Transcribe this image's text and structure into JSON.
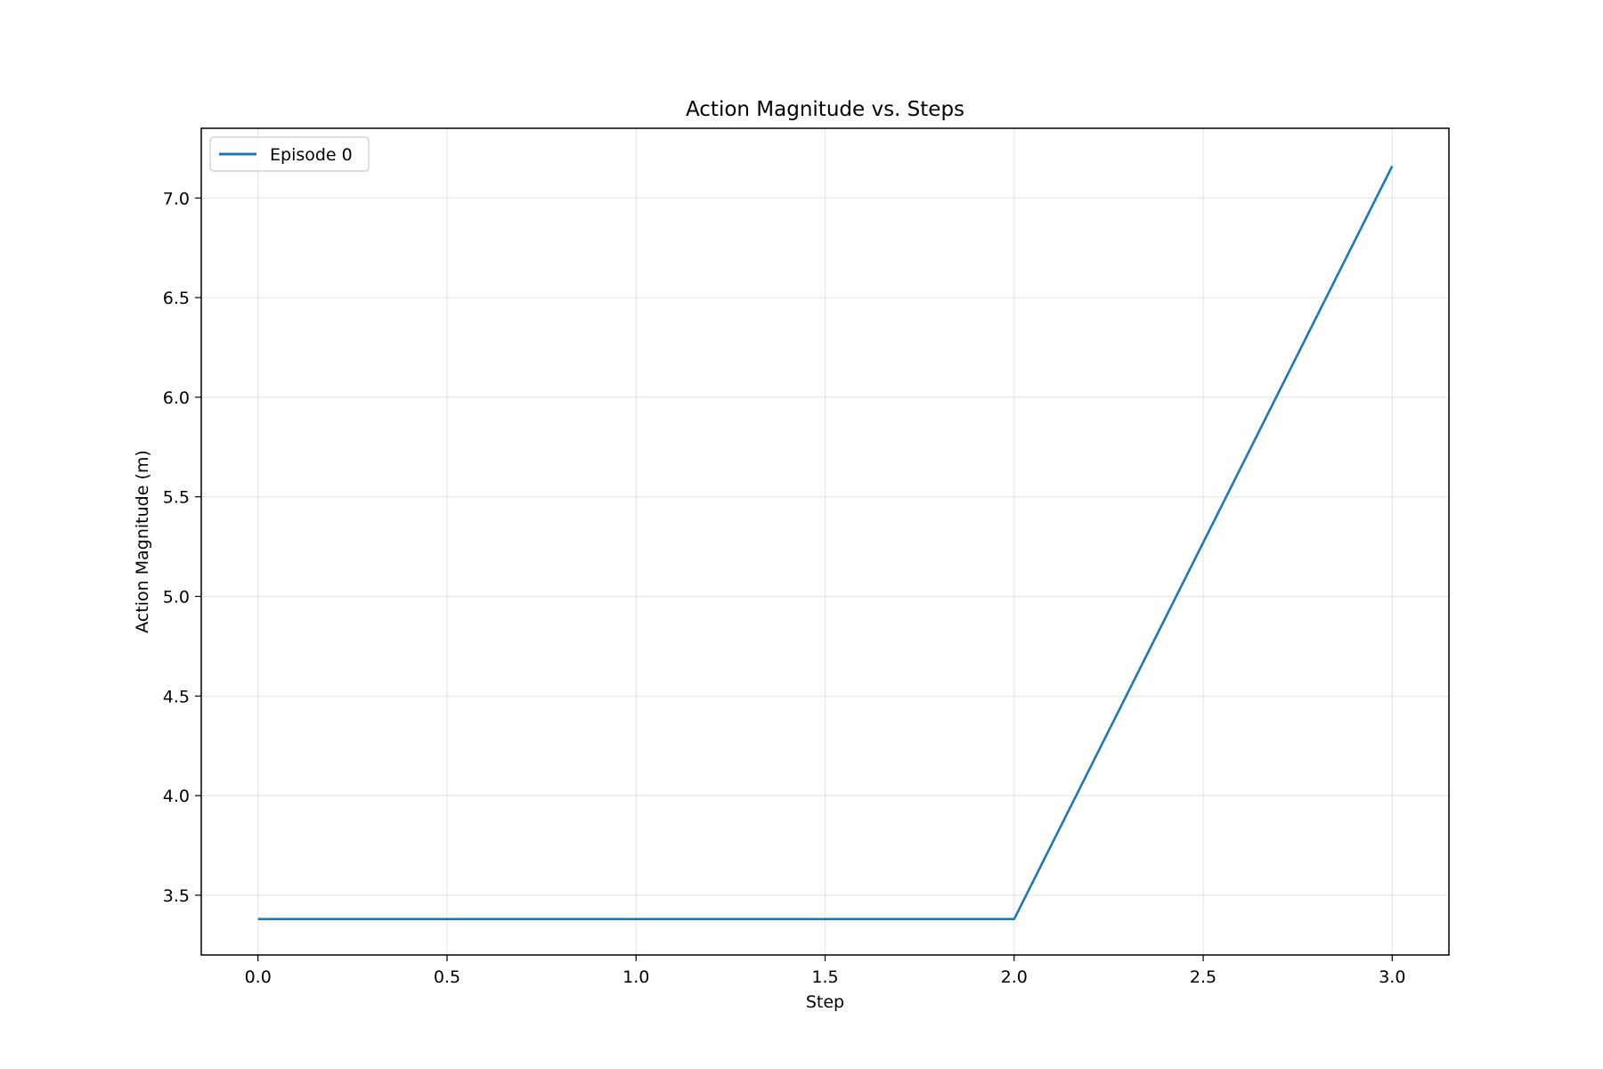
{
  "chart_data": {
    "type": "line",
    "title": "Action Magnitude vs. Steps",
    "xlabel": "Step",
    "ylabel": "Action Magnitude (m)",
    "xlim": [
      -0.15,
      3.15
    ],
    "ylim": [
      3.2,
      7.35
    ],
    "x_ticks": [
      0.0,
      0.5,
      1.0,
      1.5,
      2.0,
      2.5,
      3.0
    ],
    "x_tick_labels": [
      "0.0",
      "0.5",
      "1.0",
      "1.5",
      "2.0",
      "2.5",
      "3.0"
    ],
    "y_ticks": [
      3.5,
      4.0,
      4.5,
      5.0,
      5.5,
      6.0,
      6.5,
      7.0
    ],
    "y_tick_labels": [
      "3.5",
      "4.0",
      "4.5",
      "5.0",
      "5.5",
      "6.0",
      "6.5",
      "7.0"
    ],
    "grid": true,
    "legend_position": "top-left",
    "series": [
      {
        "name": "Episode 0",
        "color": "#1f77b4",
        "x": [
          0,
          1,
          2,
          3
        ],
        "y": [
          3.38,
          3.38,
          3.38,
          7.16
        ]
      }
    ]
  }
}
